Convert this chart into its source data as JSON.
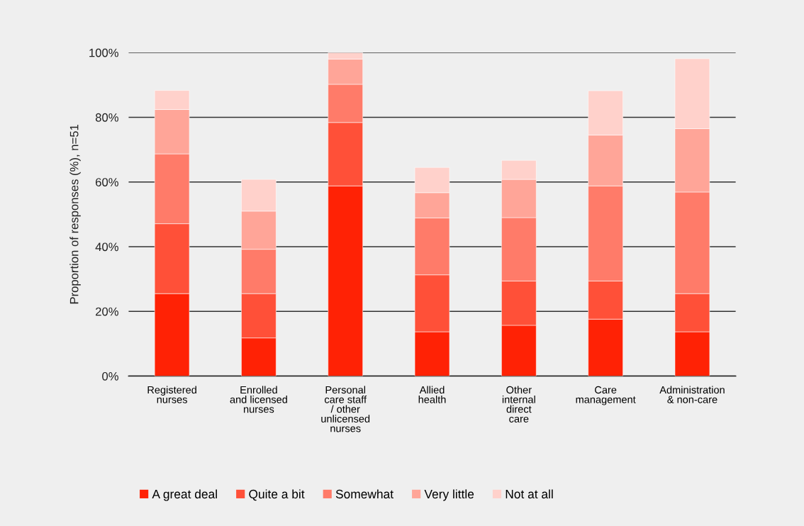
{
  "chart_data": {
    "type": "bar",
    "stacked": true,
    "ylabel": "Proportion of responses (%), n=51",
    "categories": [
      "Registered\nnurses",
      "Enrolled\nand licensed\nnurses",
      "Personal\ncare staff\n/ other\nunlicensed\nnurses",
      "Allied\nhealth",
      "Other\ninternal\ndirect\ncare",
      "Care\nmanagement",
      "Administration\n& non-care"
    ],
    "series": [
      {
        "name": "A great deal",
        "color": "#ff2205",
        "values": [
          25.5,
          11.8,
          58.8,
          13.7,
          15.7,
          17.6,
          13.7
        ]
      },
      {
        "name": "Quite a bit",
        "color": "#ff5038",
        "values": [
          21.6,
          13.7,
          19.6,
          17.6,
          13.7,
          11.8,
          11.8
        ]
      },
      {
        "name": "Somewhat",
        "color": "#ff7b69",
        "values": [
          21.6,
          13.7,
          11.8,
          17.6,
          19.6,
          29.4,
          31.4
        ]
      },
      {
        "name": "Very little",
        "color": "#ffa598",
        "values": [
          13.7,
          11.8,
          7.8,
          7.8,
          11.8,
          15.7,
          19.6
        ]
      },
      {
        "name": "Not at all",
        "color": "#ffd1cb",
        "values": [
          5.9,
          9.8,
          2.0,
          7.8,
          5.9,
          13.7,
          21.6
        ]
      }
    ],
    "ylim": [
      0,
      100
    ],
    "yticks": [
      {
        "value": 0,
        "label": "0%"
      },
      {
        "value": 20,
        "label": "20%"
      },
      {
        "value": 40,
        "label": "40%"
      },
      {
        "value": 60,
        "label": "60%"
      },
      {
        "value": 80,
        "label": "80%"
      },
      {
        "value": 100,
        "label": "100%"
      }
    ],
    "grid": "y",
    "legend": "bottom left"
  }
}
